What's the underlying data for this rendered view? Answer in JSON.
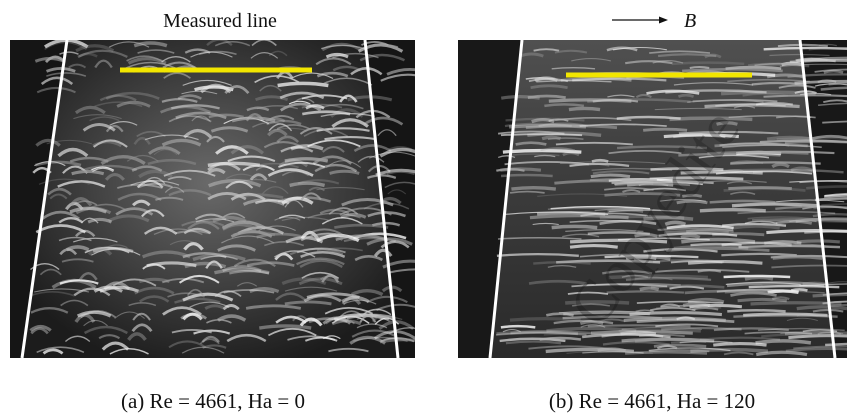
{
  "panel_a": {
    "label": "Measured line",
    "caption": "(a) Re = 4661, Ha = 0"
  },
  "panel_b": {
    "field_label": "B",
    "caption": "(b) Re = 4661, Ha = 120"
  },
  "watermark": "Copyedite"
}
